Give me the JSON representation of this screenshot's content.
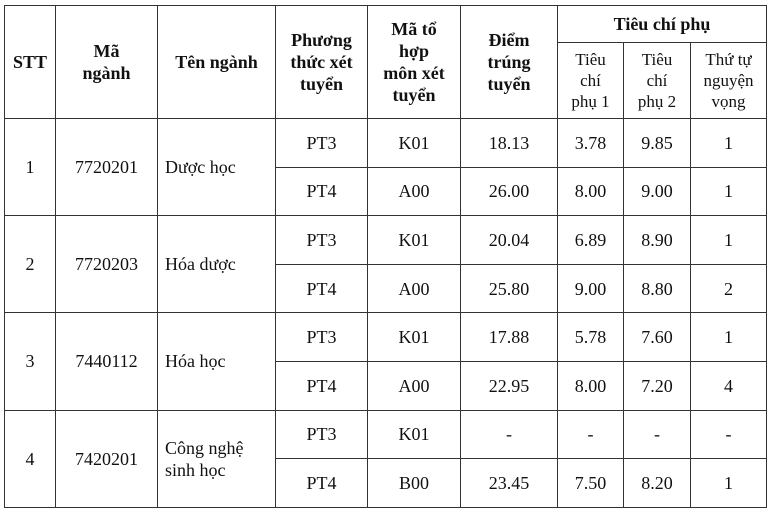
{
  "headers": {
    "stt": "STT",
    "ma_nganh": "Mã ngành",
    "ten_nganh": "Tên ngành",
    "phuong_thuc": "Phương thức xét tuyển",
    "ma_to_hop": "Mã tổ hợp môn xét tuyển",
    "diem": "Điểm trúng tuyển",
    "tieu_chi_phu": "Tiêu chí phụ",
    "tcp1": "Tiêu chí phụ 1",
    "tcp2": "Tiêu chí phụ 2",
    "thu_tu": "Thứ tự nguyện vọng"
  },
  "groups": [
    {
      "stt": "1",
      "ma": "7720201",
      "ten": "Dược học",
      "rows": [
        {
          "pt": "PT3",
          "tohop": "K01",
          "diem": "18.13",
          "tc1": "3.78",
          "tc2": "9.85",
          "nv": "1"
        },
        {
          "pt": "PT4",
          "tohop": "A00",
          "diem": "26.00",
          "tc1": "8.00",
          "tc2": "9.00",
          "nv": "1"
        }
      ]
    },
    {
      "stt": "2",
      "ma": "7720203",
      "ten": "Hóa dược",
      "rows": [
        {
          "pt": "PT3",
          "tohop": "K01",
          "diem": "20.04",
          "tc1": "6.89",
          "tc2": "8.90",
          "nv": "1"
        },
        {
          "pt": "PT4",
          "tohop": "A00",
          "diem": "25.80",
          "tc1": "9.00",
          "tc2": "8.80",
          "nv": "2"
        }
      ]
    },
    {
      "stt": "3",
      "ma": "7440112",
      "ten": "Hóa học",
      "rows": [
        {
          "pt": "PT3",
          "tohop": "K01",
          "diem": "17.88",
          "tc1": "5.78",
          "tc2": "7.60",
          "nv": "1"
        },
        {
          "pt": "PT4",
          "tohop": "A00",
          "diem": "22.95",
          "tc1": "8.00",
          "tc2": "7.20",
          "nv": "4"
        }
      ]
    },
    {
      "stt": "4",
      "ma": "7420201",
      "ten": "Công nghệ sinh học",
      "rows": [
        {
          "pt": "PT3",
          "tohop": "K01",
          "diem": "-",
          "tc1": "-",
          "tc2": "-",
          "nv": "-"
        },
        {
          "pt": "PT4",
          "tohop": "B00",
          "diem": "23.45",
          "tc1": "7.50",
          "tc2": "8.20",
          "nv": "1"
        }
      ]
    }
  ]
}
